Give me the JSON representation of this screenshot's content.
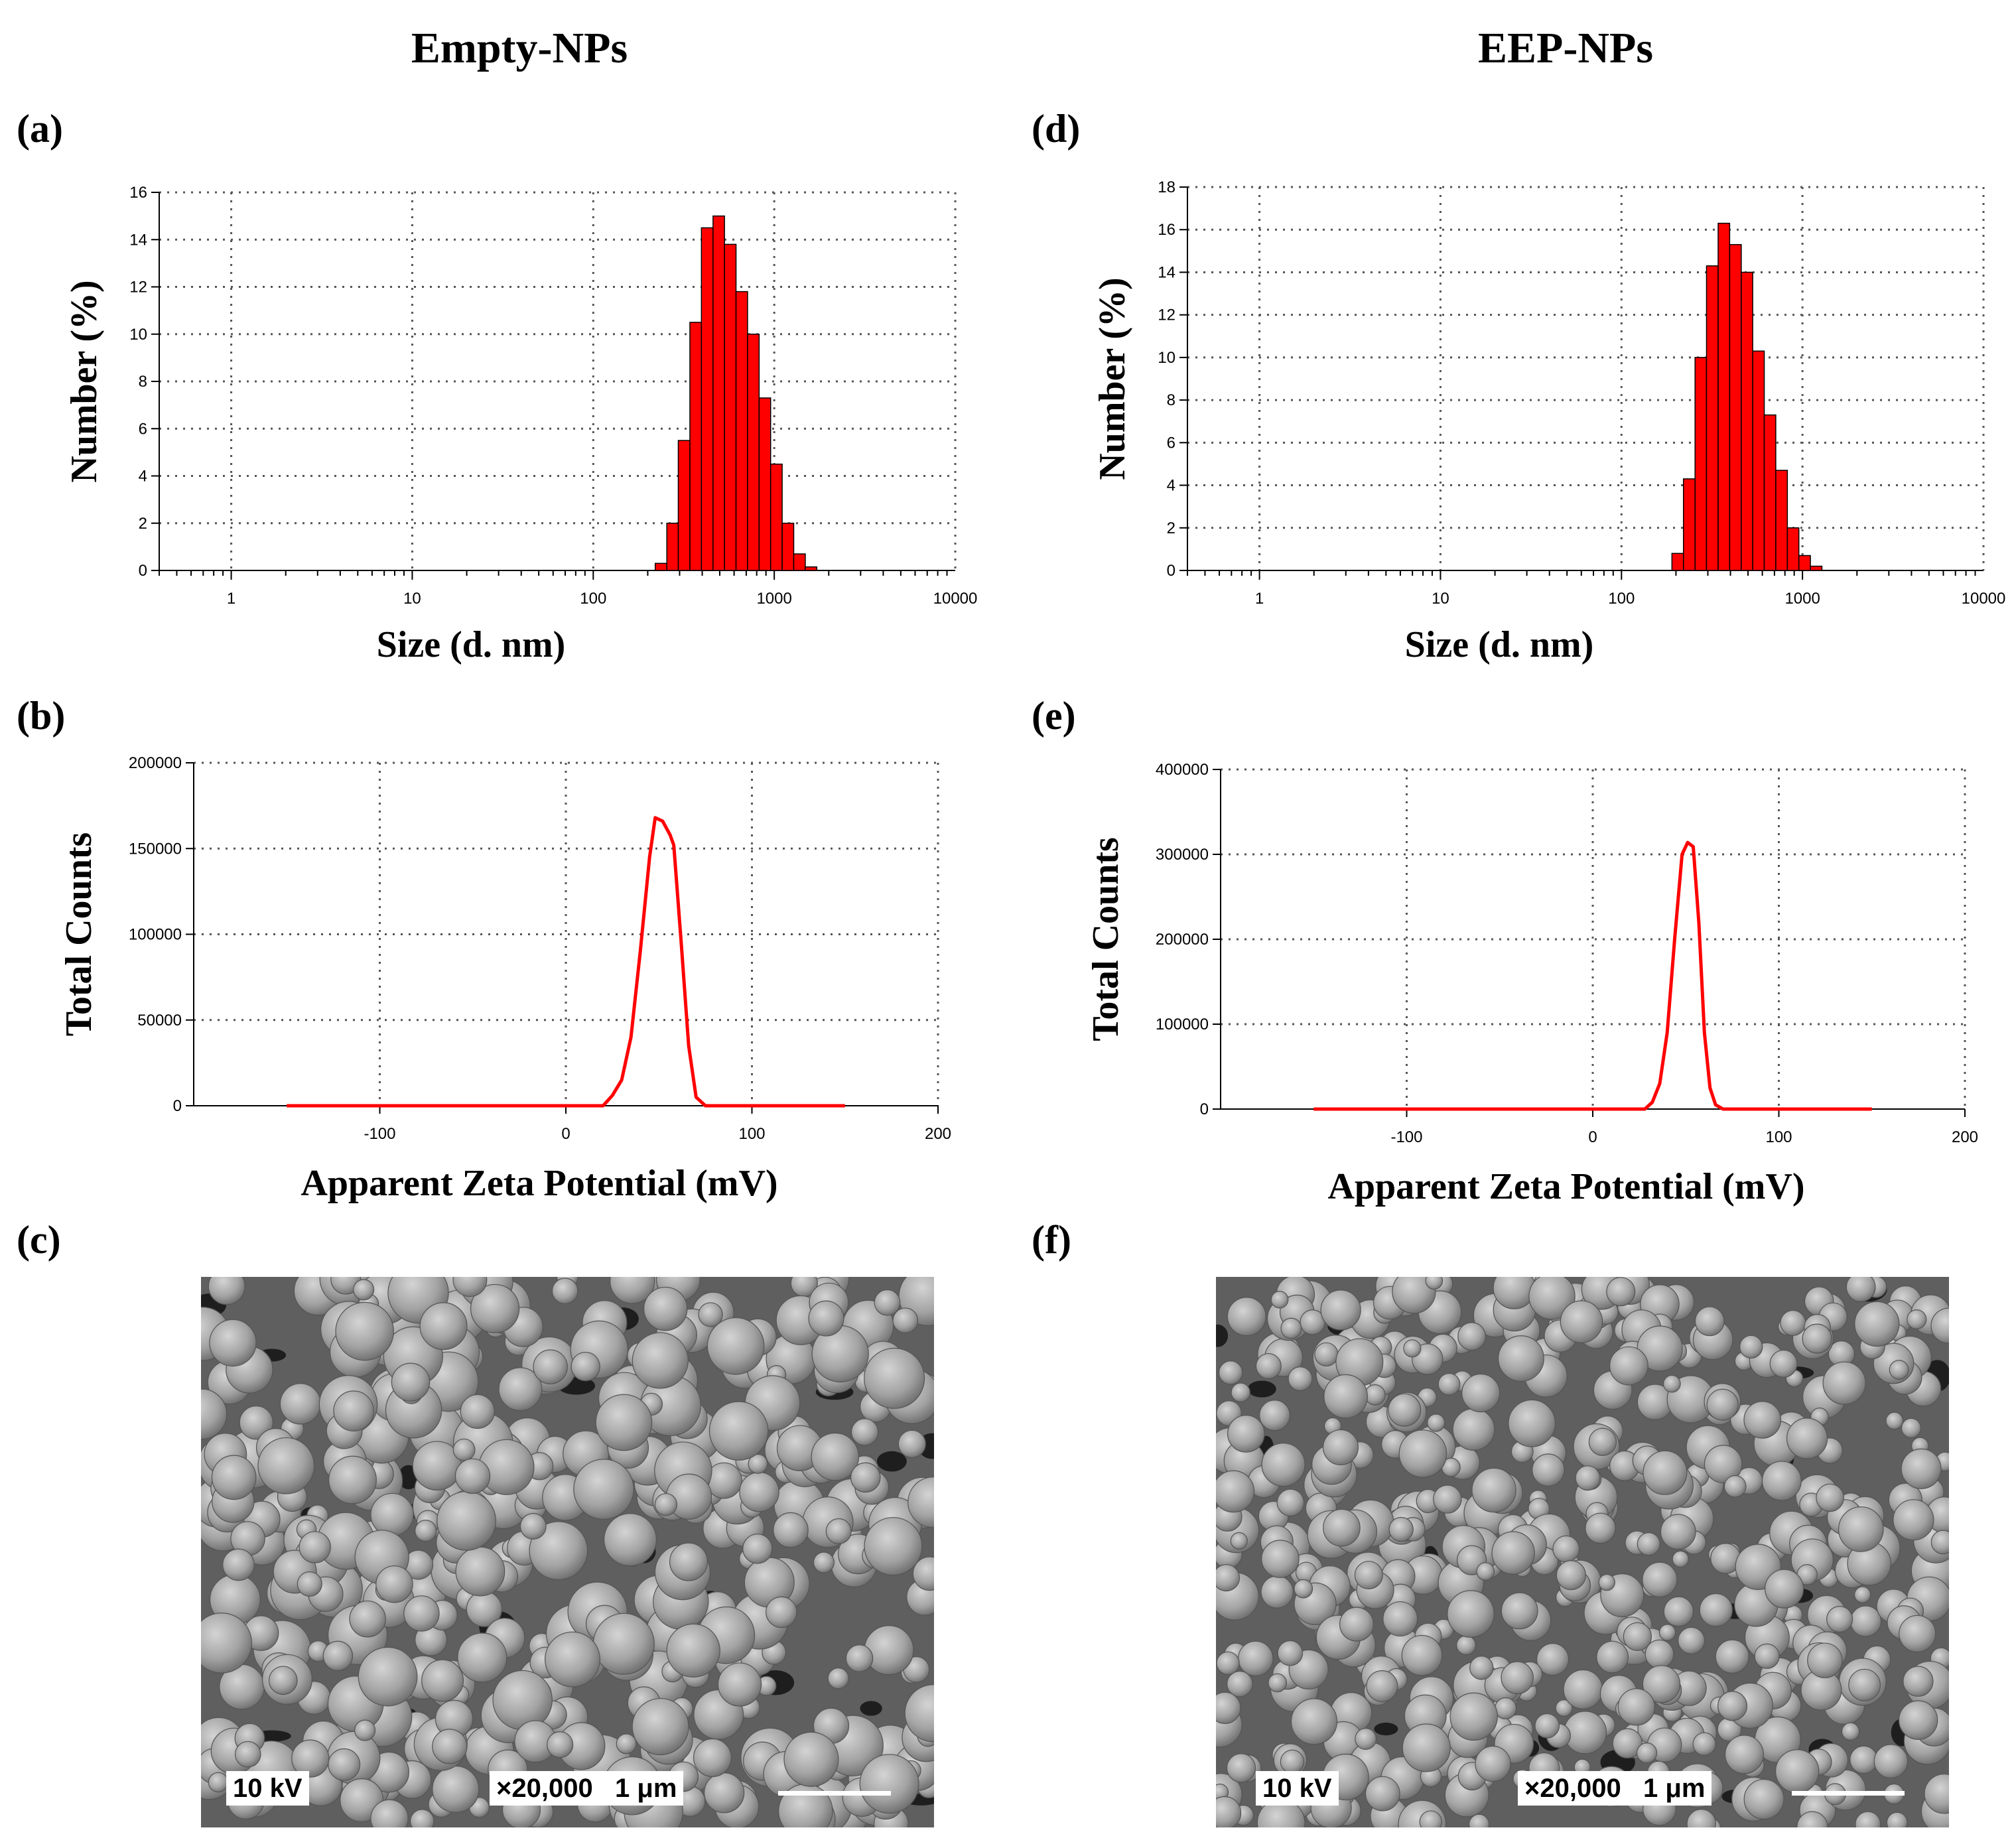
{
  "column_titles": {
    "left": "Empty-NPs",
    "right": "EEP-NPs"
  },
  "panel_labels": {
    "a": "(a)",
    "b": "(b)",
    "c": "(c)",
    "d": "(d)",
    "e": "(e)",
    "f": "(f)"
  },
  "colors": {
    "bar_fill": "#ff0000",
    "bar_stroke": "#000000",
    "line": "#ff0000",
    "grid": "#555555",
    "axis": "#000000"
  },
  "chart_data": [
    {
      "id": "a",
      "type": "bar",
      "title": "",
      "xlabel": "Size (d. nm)",
      "ylabel": "Number (%)",
      "xscale": "log",
      "xlim": [
        0.4,
        10000
      ],
      "ylim": [
        0,
        16
      ],
      "xticks": [
        1,
        10,
        100,
        1000,
        10000
      ],
      "xtick_labels": [
        "1",
        "10",
        "100",
        "1000",
        "10000"
      ],
      "yticks": [
        0,
        2,
        4,
        6,
        8,
        10,
        12,
        14,
        16
      ],
      "ytick_labels": [
        "0",
        "2",
        "4",
        "6",
        "8",
        "10",
        "12",
        "14",
        "16"
      ],
      "grid": true,
      "bin_edges": [
        220,
        255,
        295,
        342,
        396,
        459,
        531,
        615,
        712,
        825,
        955,
        1106,
        1281,
        1484,
        1718
      ],
      "values": [
        0.3,
        2.0,
        5.5,
        10.5,
        14.5,
        15.0,
        13.8,
        11.8,
        10.0,
        7.3,
        4.5,
        2.0,
        0.7,
        0.15
      ]
    },
    {
      "id": "b",
      "type": "line",
      "title": "",
      "xlabel": "Apparent Zeta Potential (mV)",
      "ylabel": "Total Counts",
      "xlim": [
        -200,
        200
      ],
      "ylim": [
        0,
        200000
      ],
      "xticks": [
        -100,
        0,
        100,
        200
      ],
      "xtick_labels": [
        "-100",
        "0",
        "100",
        "200"
      ],
      "yticks": [
        0,
        50000,
        100000,
        150000,
        200000
      ],
      "ytick_labels": [
        "0",
        "50000",
        "100000",
        "150000",
        "200000"
      ],
      "grid": true,
      "x": [
        -150,
        -50,
        20,
        25,
        30,
        35,
        40,
        45,
        48,
        52,
        56,
        58,
        62,
        66,
        70,
        75,
        100,
        150
      ],
      "y": [
        0,
        0,
        0,
        6000,
        15000,
        40000,
        90000,
        145000,
        168000,
        166000,
        158000,
        152000,
        95000,
        35000,
        5000,
        0,
        0,
        0
      ]
    },
    {
      "id": "d",
      "type": "bar",
      "title": "",
      "xlabel": "Size (d. nm)",
      "ylabel": "Number (%)",
      "xscale": "log",
      "xlim": [
        0.4,
        10000
      ],
      "ylim": [
        0,
        18
      ],
      "xticks": [
        1,
        10,
        100,
        1000,
        10000
      ],
      "xtick_labels": [
        "1",
        "10",
        "100",
        "1000",
        "10000"
      ],
      "yticks": [
        0,
        2,
        4,
        6,
        8,
        10,
        12,
        14,
        16,
        18
      ],
      "ytick_labels": [
        "0",
        "2",
        "4",
        "6",
        "8",
        "10",
        "12",
        "14",
        "16",
        "18"
      ],
      "grid": true,
      "bin_edges": [
        190,
        220,
        255,
        295,
        342,
        396,
        459,
        531,
        615,
        712,
        825,
        955,
        1106,
        1281
      ],
      "values": [
        0.8,
        4.3,
        10.0,
        14.3,
        16.3,
        15.3,
        14.0,
        10.3,
        7.3,
        4.7,
        2.0,
        0.7,
        0.2
      ]
    },
    {
      "id": "e",
      "type": "line",
      "title": "",
      "xlabel": "Apparent Zeta Potential (mV)",
      "ylabel": "Total Counts",
      "xlim": [
        -200,
        200
      ],
      "ylim": [
        0,
        400000
      ],
      "xticks": [
        -100,
        0,
        100,
        200
      ],
      "xtick_labels": [
        "-100",
        "0",
        "100",
        "200"
      ],
      "yticks": [
        0,
        100000,
        200000,
        300000,
        400000
      ],
      "ytick_labels": [
        "0",
        "100000",
        "200000",
        "300000",
        "400000"
      ],
      "grid": true,
      "x": [
        -150,
        -50,
        28,
        32,
        36,
        40,
        44,
        48,
        51,
        54,
        57,
        60,
        63,
        66,
        70,
        100,
        150
      ],
      "y": [
        0,
        0,
        0,
        8000,
        30000,
        90000,
        200000,
        300000,
        314000,
        309000,
        220000,
        90000,
        25000,
        5000,
        0,
        0,
        0
      ]
    }
  ],
  "sem_images": [
    {
      "id": "c",
      "voltage": "10 kV",
      "magnification": "×20,000",
      "scale": "1 μm"
    },
    {
      "id": "f",
      "voltage": "10 kV",
      "magnification": "×20,000",
      "scale": "1 μm"
    }
  ]
}
